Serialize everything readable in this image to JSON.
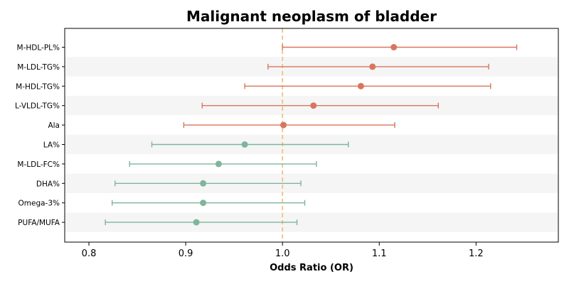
{
  "chart_data": {
    "type": "forest",
    "title": "Malignant neoplasm of bladder",
    "xlabel": "Odds Ratio (OR)",
    "xlim": [
      0.775,
      1.285
    ],
    "xticks": [
      "0.8",
      "0.9",
      "1.0",
      "1.1",
      "1.2"
    ],
    "reference_line": 1.0,
    "colors": {
      "risk": "#d9755e",
      "protective": "#7fb59c",
      "reference": "#f2c18a",
      "band": "#f5f5f5"
    },
    "rows": [
      {
        "label": "M-HDL-PL%",
        "or": 1.115,
        "lower": 1.0,
        "upper": 1.242
      },
      {
        "label": "M-LDL-TG%",
        "or": 1.093,
        "lower": 0.985,
        "upper": 1.213
      },
      {
        "label": "M-HDL-TG%",
        "or": 1.081,
        "lower": 0.961,
        "upper": 1.215
      },
      {
        "label": "L-VLDL-TG%",
        "or": 1.032,
        "lower": 0.917,
        "upper": 1.161
      },
      {
        "label": "Ala",
        "or": 1.001,
        "lower": 0.898,
        "upper": 1.116
      },
      {
        "label": "LA%",
        "or": 0.961,
        "lower": 0.865,
        "upper": 1.068
      },
      {
        "label": "M-LDL-FC%",
        "or": 0.934,
        "lower": 0.842,
        "upper": 1.035
      },
      {
        "label": "DHA%",
        "or": 0.918,
        "lower": 0.827,
        "upper": 1.019
      },
      {
        "label": "Omega-3%",
        "or": 0.918,
        "lower": 0.824,
        "upper": 1.023
      },
      {
        "label": "PUFA/MUFA",
        "or": 0.911,
        "lower": 0.817,
        "upper": 1.015
      }
    ]
  }
}
